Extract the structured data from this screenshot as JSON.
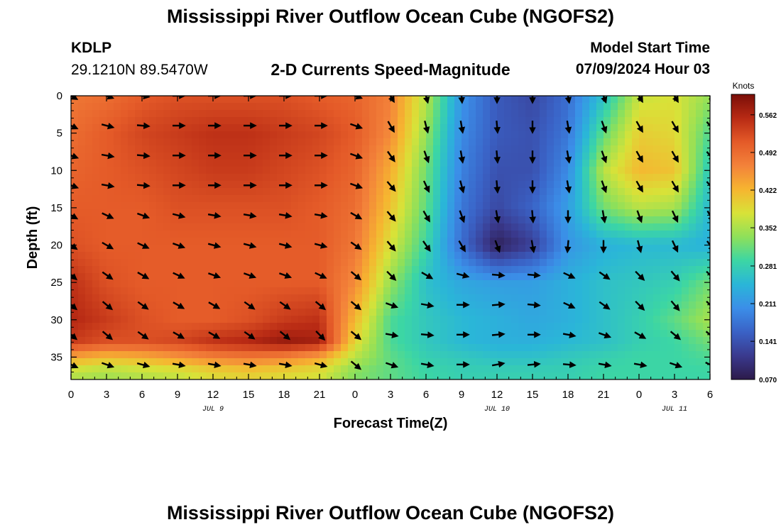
{
  "header": {
    "title": "Mississippi River Outflow Ocean Cube (NGOFS2)",
    "station": "KDLP",
    "coordinates": "29.1210N  89.5470W",
    "product": "2-D Currents Speed-Magnitude",
    "model_start_label": "Model Start Time",
    "model_start_value": "07/09/2024 Hour 03"
  },
  "footer": {
    "title": "Mississippi River Outflow Ocean Cube (NGOFS2)"
  },
  "chart_data": {
    "type": "heatmap",
    "xlabel": "Forecast Time(Z)",
    "ylabel": "Depth (ft)",
    "x_range_hours": [
      0,
      54
    ],
    "y_range_ft": [
      0,
      38
    ],
    "x_ticks": [
      "0",
      "3",
      "6",
      "9",
      "12",
      "15",
      "18",
      "21",
      "0",
      "3",
      "6",
      "9",
      "12",
      "15",
      "18",
      "21",
      "0",
      "3",
      "6"
    ],
    "y_ticks": [
      "0",
      "5",
      "10",
      "15",
      "20",
      "25",
      "30",
      "35"
    ],
    "date_labels": [
      {
        "text": "JUL 9",
        "hour": 12
      },
      {
        "text": "JUL 10",
        "hour": 36
      },
      {
        "text": "JUL 11",
        "hour": 51
      }
    ],
    "colorbar": {
      "label": "Knots",
      "ticks": [
        "0.562",
        "0.492",
        "0.422",
        "0.352",
        "0.281",
        "0.211",
        "0.141",
        "0.070"
      ],
      "range": [
        0.07,
        0.6
      ],
      "colors": [
        "#2c1a4a",
        "#3a3a8e",
        "#3a62c6",
        "#3b8ee8",
        "#2ab6d8",
        "#3cd6a4",
        "#8ee05a",
        "#d8e238",
        "#f6b530",
        "#f3823a",
        "#e45a28",
        "#b82a14",
        "#7a0e08"
      ]
    },
    "speed_rows": [
      {
        "depth": 0,
        "values": [
          0.48,
          0.49,
          0.51,
          0.52,
          0.52,
          0.52,
          0.52,
          0.51,
          0.5,
          0.47,
          0.36,
          0.21,
          0.15,
          0.13,
          0.17,
          0.26,
          0.37,
          0.38,
          0.34
        ]
      },
      {
        "depth": 5,
        "values": [
          0.49,
          0.51,
          0.53,
          0.54,
          0.55,
          0.55,
          0.54,
          0.53,
          0.51,
          0.46,
          0.34,
          0.2,
          0.15,
          0.14,
          0.18,
          0.31,
          0.4,
          0.39,
          0.3
        ]
      },
      {
        "depth": 10,
        "values": [
          0.5,
          0.51,
          0.52,
          0.53,
          0.54,
          0.54,
          0.53,
          0.52,
          0.5,
          0.43,
          0.32,
          0.19,
          0.14,
          0.14,
          0.2,
          0.36,
          0.42,
          0.41,
          0.27
        ]
      },
      {
        "depth": 15,
        "values": [
          0.51,
          0.51,
          0.51,
          0.52,
          0.52,
          0.52,
          0.52,
          0.51,
          0.49,
          0.41,
          0.31,
          0.18,
          0.13,
          0.16,
          0.22,
          0.32,
          0.36,
          0.35,
          0.25
        ]
      },
      {
        "depth": 20,
        "values": [
          0.52,
          0.51,
          0.51,
          0.51,
          0.51,
          0.51,
          0.51,
          0.51,
          0.48,
          0.38,
          0.29,
          0.17,
          0.08,
          0.12,
          0.21,
          0.24,
          0.25,
          0.25,
          0.24
        ]
      },
      {
        "depth": 25,
        "values": [
          0.55,
          0.52,
          0.51,
          0.51,
          0.51,
          0.51,
          0.51,
          0.51,
          0.46,
          0.34,
          0.26,
          0.23,
          0.22,
          0.22,
          0.24,
          0.26,
          0.27,
          0.28,
          0.32
        ]
      },
      {
        "depth": 30,
        "values": [
          0.56,
          0.54,
          0.52,
          0.51,
          0.51,
          0.52,
          0.54,
          0.55,
          0.42,
          0.3,
          0.27,
          0.25,
          0.24,
          0.23,
          0.24,
          0.26,
          0.28,
          0.31,
          0.35
        ]
      },
      {
        "depth": 33,
        "values": [
          0.54,
          0.52,
          0.52,
          0.53,
          0.55,
          0.56,
          0.58,
          0.57,
          0.39,
          0.3,
          0.27,
          0.25,
          0.24,
          0.24,
          0.25,
          0.26,
          0.28,
          0.29,
          0.32
        ]
      },
      {
        "depth": 35,
        "values": [
          0.44,
          0.42,
          0.43,
          0.45,
          0.47,
          0.48,
          0.47,
          0.44,
          0.36,
          0.31,
          0.28,
          0.27,
          0.26,
          0.26,
          0.27,
          0.28,
          0.29,
          0.29,
          0.3
        ]
      },
      {
        "depth": 37,
        "values": [
          0.36,
          0.35,
          0.36,
          0.37,
          0.39,
          0.4,
          0.39,
          0.38,
          0.33,
          0.31,
          0.29,
          0.28,
          0.28,
          0.28,
          0.28,
          0.29,
          0.29,
          0.29,
          0.29
        ]
      }
    ],
    "arrow_depths_ft": [
      0,
      4,
      8,
      12,
      16,
      20,
      24,
      28,
      32,
      36
    ],
    "arrow_rows": [
      {
        "depth": 0,
        "dir_deg": [
          120,
          110,
          100,
          90,
          90,
          90,
          90,
          90,
          110,
          150,
          165,
          175,
          180,
          180,
          170,
          160,
          150,
          150,
          140
        ]
      },
      {
        "depth": 4,
        "dir_deg": [
          115,
          105,
          95,
          90,
          90,
          90,
          90,
          90,
          110,
          150,
          165,
          170,
          175,
          180,
          170,
          160,
          150,
          150,
          140
        ]
      },
      {
        "depth": 8,
        "dir_deg": [
          110,
          100,
          95,
          90,
          90,
          90,
          90,
          90,
          110,
          145,
          160,
          170,
          175,
          180,
          170,
          160,
          150,
          150,
          140
        ]
      },
      {
        "depth": 12,
        "dir_deg": [
          110,
          100,
          95,
          90,
          90,
          90,
          90,
          90,
          110,
          140,
          155,
          165,
          175,
          180,
          170,
          160,
          150,
          150,
          140
        ]
      },
      {
        "depth": 16,
        "dir_deg": [
          120,
          115,
          110,
          105,
          100,
          100,
          100,
          100,
          120,
          140,
          150,
          160,
          170,
          175,
          180,
          170,
          160,
          155,
          150
        ]
      },
      {
        "depth": 20,
        "dir_deg": [
          125,
          120,
          115,
          110,
          105,
          105,
          105,
          105,
          125,
          140,
          145,
          150,
          160,
          170,
          185,
          180,
          165,
          155,
          145
        ]
      },
      {
        "depth": 24,
        "dir_deg": [
          130,
          125,
          120,
          115,
          110,
          110,
          110,
          115,
          130,
          135,
          120,
          105,
          95,
          95,
          115,
          125,
          135,
          140,
          135
        ]
      },
      {
        "depth": 28,
        "dir_deg": [
          130,
          130,
          125,
          120,
          120,
          125,
          125,
          130,
          130,
          110,
          100,
          90,
          85,
          95,
          115,
          125,
          135,
          140,
          135
        ]
      },
      {
        "depth": 32,
        "dir_deg": [
          130,
          130,
          125,
          120,
          120,
          125,
          130,
          135,
          130,
          100,
          95,
          90,
          85,
          90,
          100,
          110,
          120,
          130,
          130
        ]
      },
      {
        "depth": 36,
        "dir_deg": [
          115,
          110,
          105,
          100,
          100,
          100,
          100,
          105,
          130,
          110,
          100,
          90,
          80,
          85,
          95,
          100,
          100,
          110,
          115
        ]
      }
    ]
  }
}
